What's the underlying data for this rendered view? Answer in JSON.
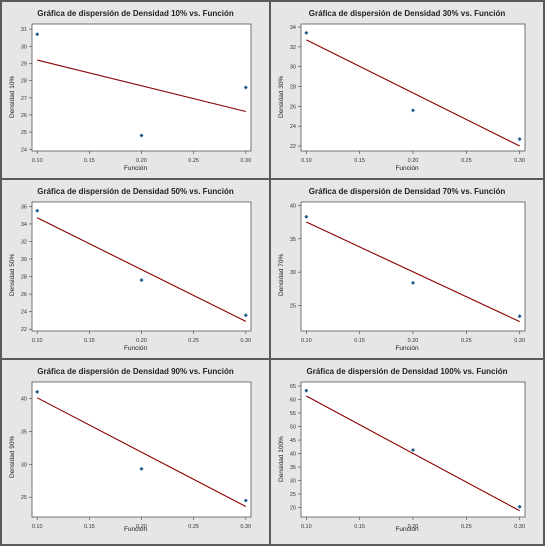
{
  "colors": {
    "point": "#1f5a8c",
    "fit_line": "#8b0000",
    "panel_bg": "#e6e6e6",
    "plot_bg": "#ffffff"
  },
  "chart_data": [
    {
      "type": "scatter",
      "title": "Gráfica de dispersión de Densidad 10% vs. Función",
      "xlabel": "Función",
      "ylabel": "Densidad 10%",
      "x": [
        0.1,
        0.2,
        0.3
      ],
      "y": [
        30.7,
        24.8,
        27.6
      ],
      "fit_line": [
        [
          0.1,
          29.2
        ],
        [
          0.3,
          26.2
        ]
      ],
      "xlim": [
        0.095,
        0.305
      ],
      "ylim": [
        23.9,
        31.3
      ],
      "xticks": [
        "0.10",
        "0.15",
        "0.20",
        "0.25",
        "0.30"
      ],
      "yticks": [
        "24",
        "25",
        "26",
        "27",
        "28",
        "29",
        "30",
        "31"
      ],
      "xtick_values": [
        0.1,
        0.15,
        0.2,
        0.25,
        0.3
      ],
      "ytick_values": [
        24,
        25,
        26,
        27,
        28,
        29,
        30,
        31
      ]
    },
    {
      "type": "scatter",
      "title": "Gráfica de dispersión de Densidad 30% vs. Función",
      "xlabel": "Función",
      "ylabel": "Densidad 30%",
      "x": [
        0.1,
        0.2,
        0.3
      ],
      "y": [
        33.4,
        25.6,
        22.7
      ],
      "fit_line": [
        [
          0.1,
          32.7
        ],
        [
          0.3,
          22.0
        ]
      ],
      "xlim": [
        0.095,
        0.305
      ],
      "ylim": [
        21.5,
        34.3
      ],
      "xticks": [
        "0.10",
        "0.15",
        "0.20",
        "0.25",
        "0.30"
      ],
      "yticks": [
        "22",
        "24",
        "26",
        "28",
        "30",
        "32",
        "34"
      ],
      "xtick_values": [
        0.1,
        0.15,
        0.2,
        0.25,
        0.3
      ],
      "ytick_values": [
        22,
        24,
        26,
        28,
        30,
        32,
        34
      ]
    },
    {
      "type": "scatter",
      "title": "Gráfica de dispersión de Densidad 50% vs. Función",
      "xlabel": "Función",
      "ylabel": "Densidad 50%",
      "x": [
        0.1,
        0.2,
        0.3
      ],
      "y": [
        35.5,
        27.6,
        23.6
      ],
      "fit_line": [
        [
          0.1,
          34.7
        ],
        [
          0.3,
          22.9
        ]
      ],
      "xlim": [
        0.095,
        0.305
      ],
      "ylim": [
        21.8,
        36.5
      ],
      "xticks": [
        "0.10",
        "0.15",
        "0.20",
        "0.25",
        "0.30"
      ],
      "yticks": [
        "22",
        "24",
        "26",
        "28",
        "30",
        "32",
        "34",
        "36"
      ],
      "xtick_values": [
        0.1,
        0.15,
        0.2,
        0.25,
        0.3
      ],
      "ytick_values": [
        22,
        24,
        26,
        28,
        30,
        32,
        34,
        36
      ]
    },
    {
      "type": "scatter",
      "title": "Gráfica de dispersión de Densidad 70% vs. Función",
      "xlabel": "Función",
      "ylabel": "Densidad 70%",
      "x": [
        0.1,
        0.2,
        0.3
      ],
      "y": [
        38.3,
        28.4,
        23.4
      ],
      "fit_line": [
        [
          0.1,
          37.5
        ],
        [
          0.3,
          22.6
        ]
      ],
      "xlim": [
        0.095,
        0.305
      ],
      "ylim": [
        21.2,
        40.5
      ],
      "xticks": [
        "0.10",
        "0.15",
        "0.20",
        "0.25",
        "0.30"
      ],
      "yticks": [
        "25",
        "30",
        "35",
        "40"
      ],
      "xtick_values": [
        0.1,
        0.15,
        0.2,
        0.25,
        0.3
      ],
      "ytick_values": [
        25,
        30,
        35,
        40
      ]
    },
    {
      "type": "scatter",
      "title": "Gráfica de dispersión de Densidad 90% vs. Función",
      "xlabel": "Función",
      "ylabel": "Densidad 90%",
      "x": [
        0.1,
        0.2,
        0.3
      ],
      "y": [
        41.0,
        29.3,
        24.5
      ],
      "fit_line": [
        [
          0.1,
          40.1
        ],
        [
          0.3,
          23.6
        ]
      ],
      "xlim": [
        0.095,
        0.305
      ],
      "ylim": [
        22.0,
        42.5
      ],
      "xticks": [
        "0.10",
        "0.15",
        "0.20",
        "0.25",
        "0.30"
      ],
      "yticks": [
        "25",
        "30",
        "35",
        "40"
      ],
      "xtick_values": [
        0.1,
        0.15,
        0.2,
        0.25,
        0.3
      ],
      "ytick_values": [
        25,
        30,
        35,
        40
      ]
    },
    {
      "type": "scatter",
      "title": "Gráfica de dispersión de Densidad 100% vs. Función",
      "xlabel": "Función",
      "ylabel": "Densidad 100%",
      "x": [
        0.1,
        0.2,
        0.3
      ],
      "y": [
        63.3,
        41.3,
        20.3
      ],
      "fit_line": [
        [
          0.1,
          61.3
        ],
        [
          0.3,
          18.8
        ]
      ],
      "xlim": [
        0.095,
        0.305
      ],
      "ylim": [
        16.5,
        66.5
      ],
      "xticks": [
        "0.10",
        "0.15",
        "0.20",
        "0.25",
        "0.30"
      ],
      "yticks": [
        "20",
        "25",
        "30",
        "35",
        "40",
        "45",
        "50",
        "55",
        "60",
        "65"
      ],
      "xtick_values": [
        0.1,
        0.15,
        0.2,
        0.25,
        0.3
      ],
      "ytick_values": [
        20,
        25,
        30,
        35,
        40,
        45,
        50,
        55,
        60,
        65
      ]
    }
  ]
}
